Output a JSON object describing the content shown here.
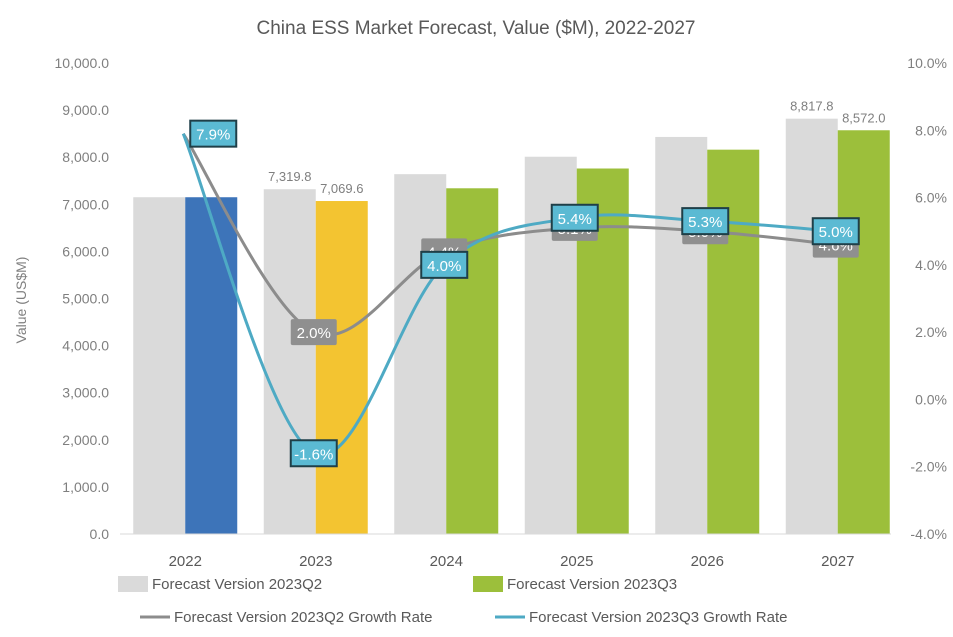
{
  "chart_data": {
    "type": "bar",
    "title": "China ESS Market Forecast, Value ($M), 2022-2027",
    "xlabel": "",
    "ylabel": "Value (US$M)",
    "y2label": "",
    "categories": [
      "2022",
      "2023",
      "2024",
      "2025",
      "2026",
      "2027"
    ],
    "ylim": [
      0,
      10000
    ],
    "y2lim": [
      -4.0,
      10.0
    ],
    "y_ticks": [
      "0.0",
      "1,000.0",
      "2,000.0",
      "3,000.0",
      "4,000.0",
      "5,000.0",
      "6,000.0",
      "7,000.0",
      "8,000.0",
      "9,000.0",
      "10,000.0"
    ],
    "y2_ticks": [
      "-4.0%",
      "-2.0%",
      "0.0%",
      "2.0%",
      "4.0%",
      "6.0%",
      "8.0%",
      "10.0%"
    ],
    "grid": false,
    "legend_position": "bottom",
    "series": [
      {
        "name": "Forecast Version 2023Q2",
        "kind": "bar",
        "color": "#dadada",
        "values": [
          7150,
          7319.8,
          7640,
          8010,
          8430,
          8817.8
        ],
        "data_labels": [
          "",
          "7,319.8",
          "",
          "",
          "",
          "8,817.8"
        ]
      },
      {
        "name": "Forecast Version 2023Q3",
        "kind": "bar",
        "color": "#9cbf3b",
        "point_colors": [
          "#3d74b9",
          "#f3c431",
          "#9cbf3b",
          "#9cbf3b",
          "#9cbf3b",
          "#9cbf3b"
        ],
        "values": [
          7150,
          7069.6,
          7340,
          7760,
          8160,
          8572.0
        ],
        "data_labels": [
          "",
          "7,069.6",
          "",
          "",
          "",
          "8,572.0"
        ]
      },
      {
        "name": "Forecast Version 2023Q2 Growth Rate",
        "kind": "line",
        "axis": "right",
        "color": "#8c8c8c",
        "values": [
          7.9,
          2.0,
          4.4,
          5.1,
          5.0,
          4.6
        ],
        "data_labels": [
          "",
          "2.0%",
          "4.4%",
          "5.1%",
          "5.0%",
          "4.6%"
        ]
      },
      {
        "name": "Forecast Version 2023Q3 Growth Rate",
        "kind": "line",
        "axis": "right",
        "color": "#4eaac4",
        "values": [
          7.9,
          -1.6,
          4.0,
          5.4,
          5.3,
          5.0
        ],
        "data_labels": [
          "7.9%",
          "-1.6%",
          "4.0%",
          "5.4%",
          "5.3%",
          "5.0%"
        ]
      }
    ]
  }
}
